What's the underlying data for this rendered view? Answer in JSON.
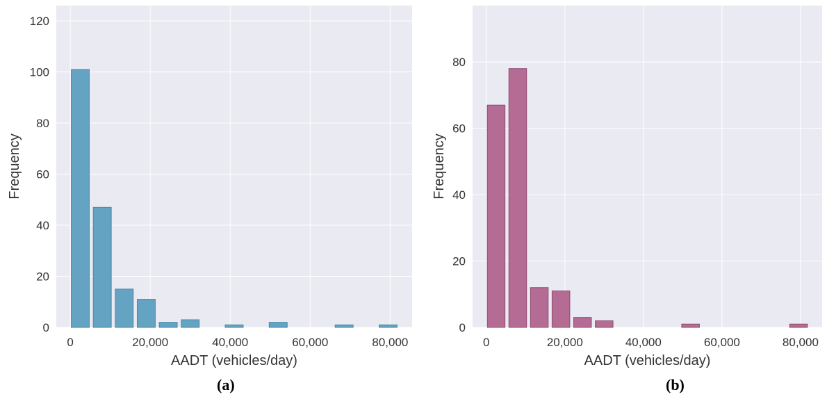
{
  "chart_data": [
    {
      "type": "bar",
      "caption": "(a)",
      "xlabel": "AADT (vehicles/day)",
      "ylabel": "Frequency",
      "color": "#64a3c2",
      "edge_color": "#4d8aa8",
      "bin_width": 5500,
      "x": [
        2500,
        8000,
        13500,
        19000,
        24500,
        30000,
        35500,
        41000,
        46500,
        52000,
        57500,
        63000,
        68500,
        74000,
        79500
      ],
      "values": [
        101,
        47,
        15,
        11,
        2,
        3,
        0,
        1,
        0,
        2,
        0,
        0,
        1,
        0,
        1
      ],
      "xlim": [
        -3500,
        85500
      ],
      "ylim": [
        0,
        126
      ],
      "xticks": [
        0,
        20000,
        40000,
        60000,
        80000
      ],
      "xtick_labels": [
        "0",
        "20,000",
        "40,000",
        "60,000",
        "80,000"
      ],
      "yticks": [
        0,
        20,
        40,
        60,
        80,
        100,
        120
      ],
      "ytick_labels": [
        "0",
        "20",
        "40",
        "60",
        "80",
        "100",
        "120"
      ],
      "grid": true
    },
    {
      "type": "bar",
      "caption": "(b)",
      "xlabel": "AADT (vehicles/day)",
      "ylabel": "Frequency",
      "color": "#b56c94",
      "edge_color": "#8f4c70",
      "bin_width": 5500,
      "x": [
        2500,
        8000,
        13500,
        19000,
        24500,
        30000,
        35500,
        41000,
        46500,
        52000,
        57500,
        63000,
        68500,
        74000,
        79500
      ],
      "values": [
        67,
        78,
        12,
        11,
        3,
        2,
        0,
        0,
        0,
        1,
        0,
        0,
        0,
        0,
        1
      ],
      "xlim": [
        -3500,
        85500
      ],
      "ylim": [
        0,
        97
      ],
      "xticks": [
        0,
        20000,
        40000,
        60000,
        80000
      ],
      "xtick_labels": [
        "0",
        "20,000",
        "40,000",
        "60,000",
        "80,000"
      ],
      "yticks": [
        0,
        20,
        40,
        60,
        80
      ],
      "ytick_labels": [
        "0",
        "20",
        "40",
        "60",
        "80"
      ],
      "grid": true
    }
  ]
}
